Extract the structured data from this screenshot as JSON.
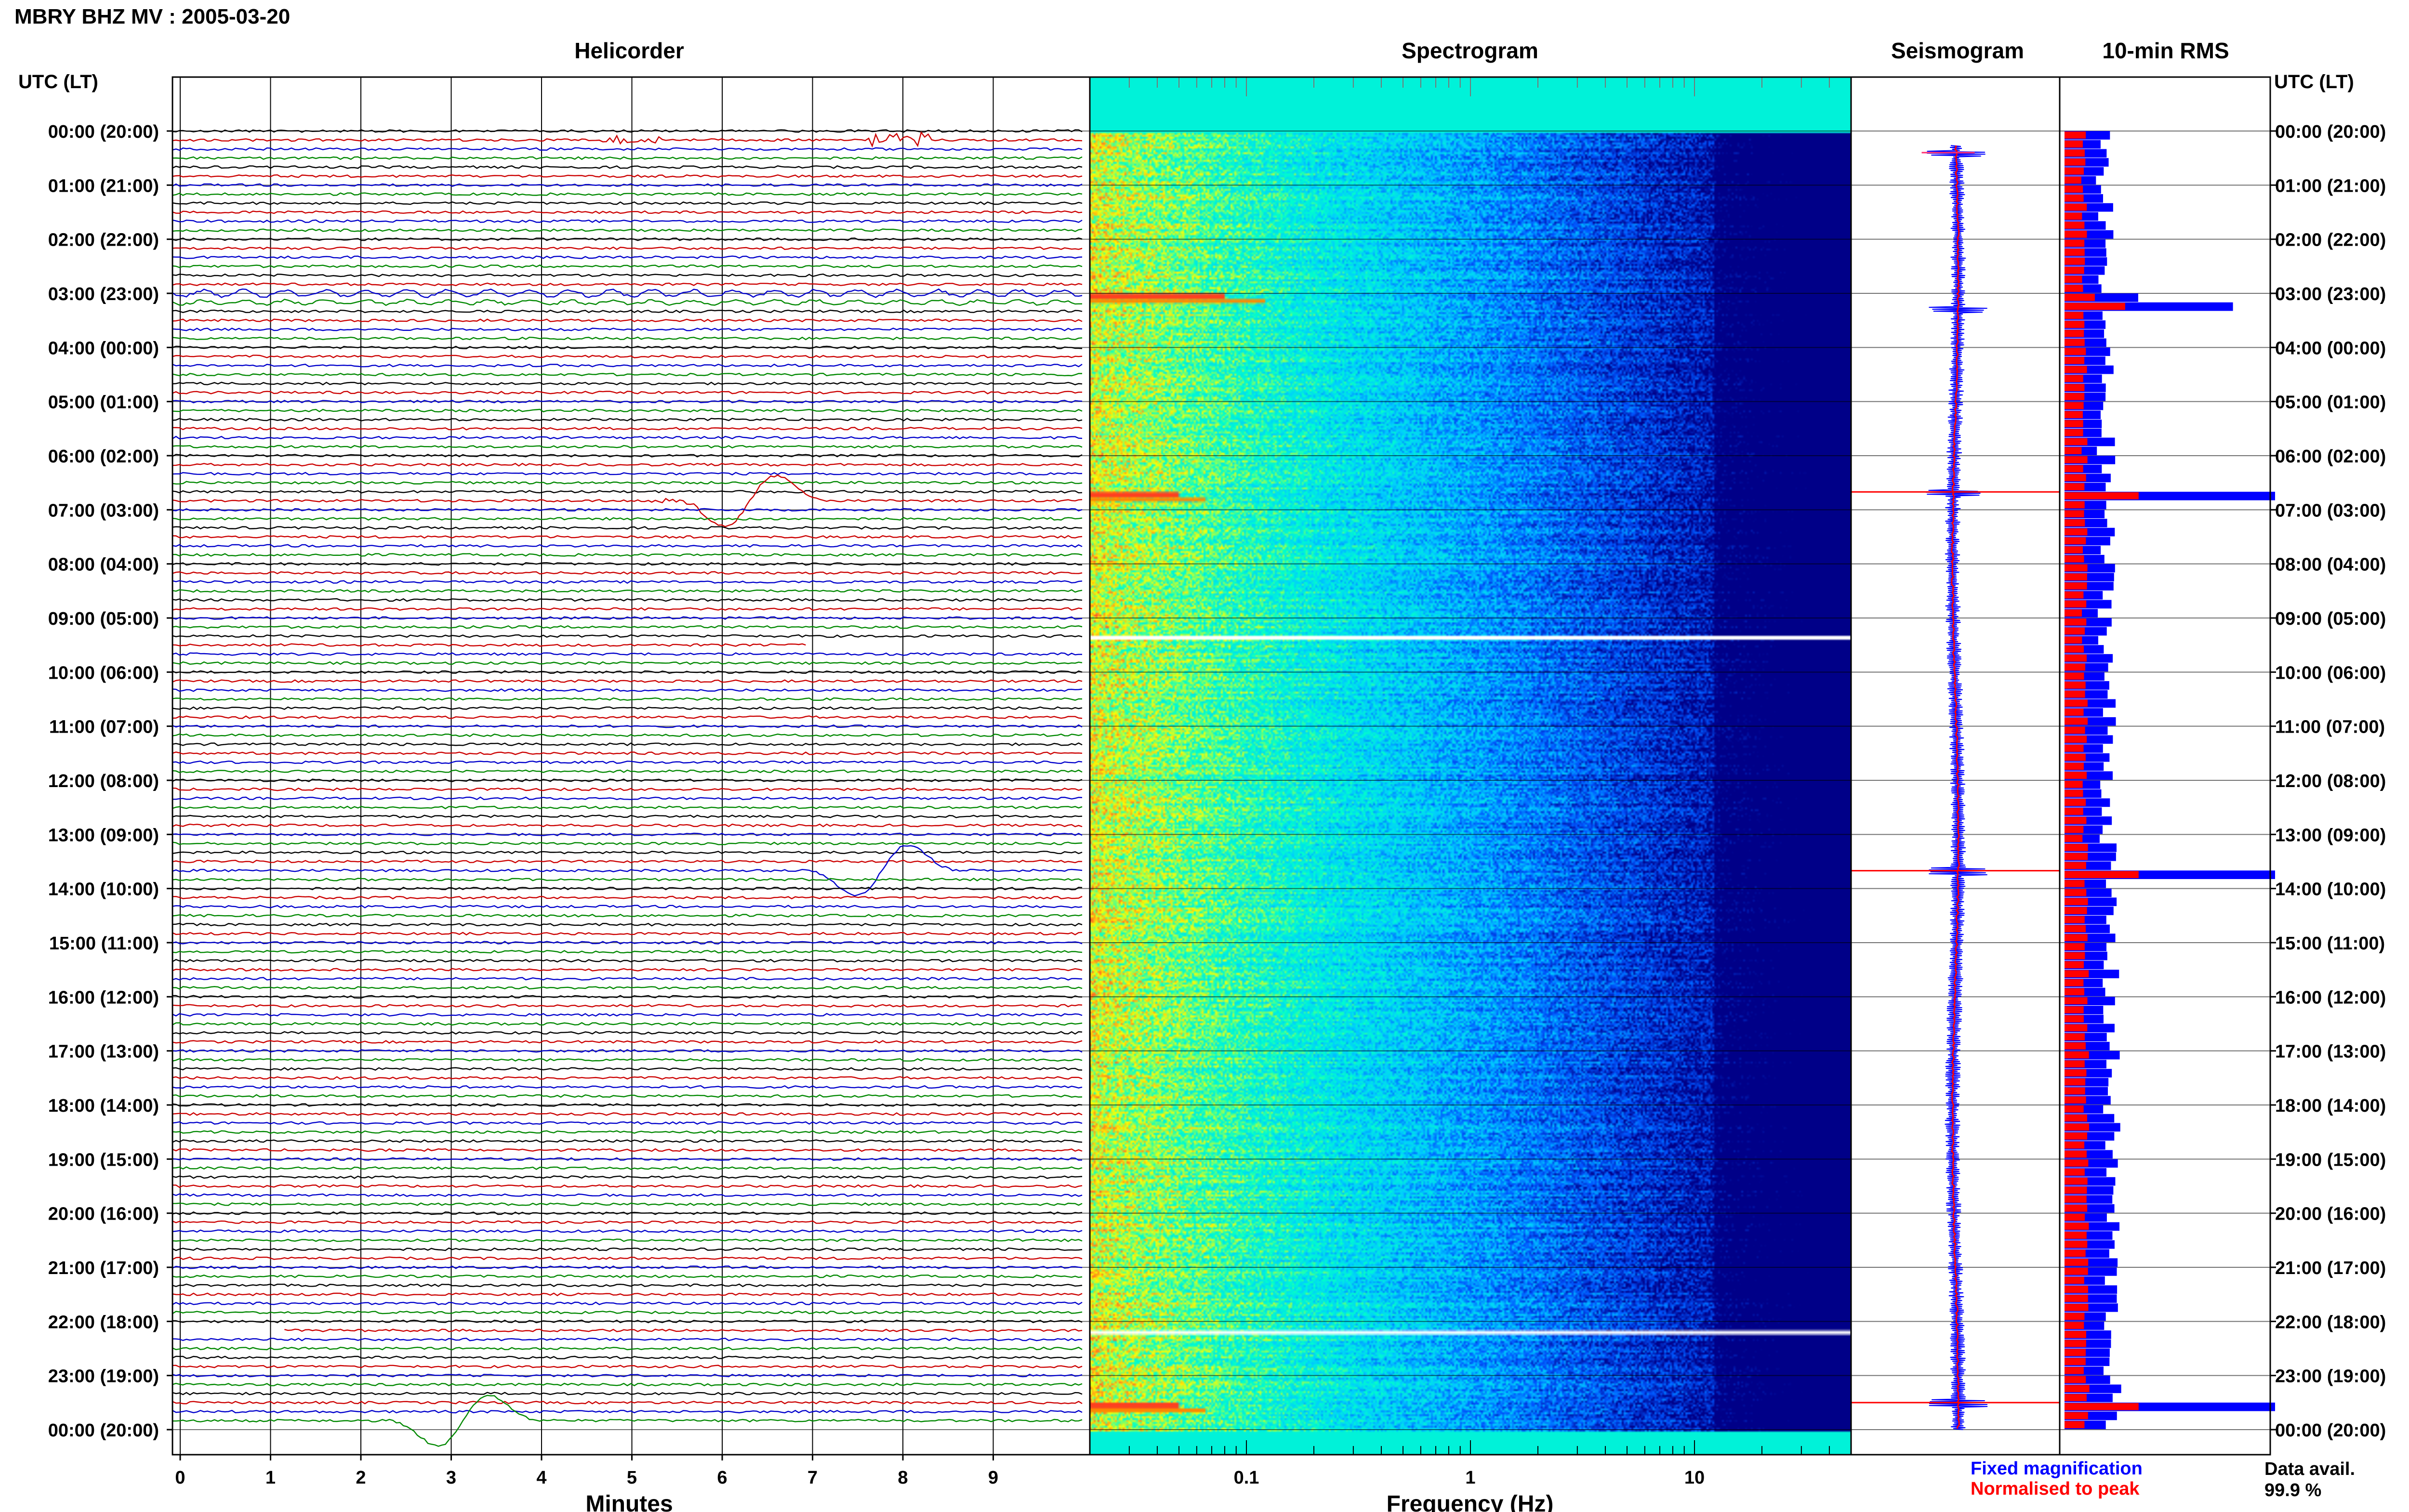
{
  "title": "MBRY BHZ MV : 2005-03-20",
  "panels": {
    "helicorder": "Helicorder",
    "spectrogram": "Spectrogram",
    "seismogram": "Seismogram",
    "rms": "10-min RMS"
  },
  "axis_header": "UTC (LT)",
  "legend": {
    "fixed": "Fixed magnification",
    "normalised": "Normalised to peak",
    "fixed_color": "#0000ff",
    "normalised_color": "#ff0000"
  },
  "availability": {
    "label": "Data avail.",
    "value": "99.9 %"
  },
  "chart_data": [
    {
      "type": "line",
      "title": "Helicorder",
      "xlabel": "Minutes",
      "x_ticks": [
        "0",
        "1",
        "2",
        "3",
        "4",
        "5",
        "6",
        "7",
        "8",
        "9"
      ],
      "xlim": [
        0,
        10
      ],
      "y_labels": [
        "00:00 (20:00)",
        "01:00 (21:00)",
        "02:00 (22:00)",
        "03:00 (23:00)",
        "04:00 (00:00)",
        "05:00 (01:00)",
        "06:00 (02:00)",
        "07:00 (03:00)",
        "08:00 (04:00)",
        "09:00 (05:00)",
        "10:00 (06:00)",
        "11:00 (07:00)",
        "12:00 (08:00)",
        "13:00 (09:00)",
        "14:00 (10:00)",
        "15:00 (11:00)",
        "16:00 (12:00)",
        "17:00 (13:00)",
        "18:00 (14:00)",
        "19:00 (15:00)",
        "20:00 (16:00)",
        "21:00 (17:00)",
        "22:00 (18:00)",
        "23:00 (19:00)",
        "00:00 (20:00)"
      ],
      "line_colors": [
        "#000000",
        "#cc0000",
        "#0000cc",
        "#008800"
      ],
      "traces_per_hour": 6,
      "gaps": [
        {
          "hours_after_start": 9.5,
          "minutes": [
            7,
            10
          ]
        },
        {
          "hours_after_start": 22.1,
          "minutes": [
            0,
            1.2
          ]
        }
      ],
      "events": [
        {
          "hour": 0.1,
          "minute": 5.0,
          "kind": "burst",
          "color": "#000088",
          "amp": 0.3
        },
        {
          "hour": 0.1,
          "minute": 8.0,
          "kind": "burst",
          "color": "#000088",
          "amp": 0.5
        },
        {
          "hour": 3.0,
          "minute": 0,
          "kind": "longperiod",
          "color": "#008800",
          "amp": 0.25
        },
        {
          "hour": 3.17,
          "minute": 0,
          "kind": "longperiod",
          "color": "#0000cc",
          "amp": 0.15
        },
        {
          "hour": 6.83,
          "minute": 6.35,
          "kind": "pulse",
          "color": "#008800",
          "amp": 1.9
        },
        {
          "hour": 6.83,
          "minute": 5.6,
          "kind": "burst",
          "color": "#660000",
          "amp": 0.2
        },
        {
          "hour": 13.67,
          "minute": 7.8,
          "kind": "pulse",
          "color": "#aa0000",
          "amp": 1.9
        },
        {
          "hour": 23.83,
          "minute": 3.2,
          "kind": "pulse",
          "color": "#aa0000",
          "amp": 1.9
        }
      ]
    },
    {
      "type": "heatmap",
      "title": "Spectrogram",
      "xlabel": "Frequency (Hz)",
      "x_scale": "log",
      "xlim": [
        0.02,
        50
      ],
      "x_ticks": [
        "0.1",
        "1",
        "10"
      ],
      "x_tick_values": [
        0.1,
        1,
        10
      ],
      "colormap": [
        "#ff3030",
        "#ffff00",
        "#00ffcc",
        "#00ccff",
        "#0055ff",
        "#000088"
      ],
      "white_lines_hours": [
        9.33,
        22.17
      ],
      "highlight_rows": [
        {
          "hour": 3.0,
          "fmax": 0.08
        },
        {
          "hour": 6.67,
          "fmax": 0.05
        },
        {
          "hour": 23.5,
          "fmax": 0.05
        }
      ]
    },
    {
      "type": "line",
      "title": "Seismogram",
      "series": [
        {
          "name": "Fixed magnification",
          "color": "#0000ff"
        },
        {
          "name": "Normalised to peak",
          "color": "#ff0000"
        }
      ],
      "spikes_hours": [
        0.4,
        3.3,
        6.67,
        13.67,
        23.5
      ]
    },
    {
      "type": "bar",
      "title": "10-min RMS",
      "orientation": "horizontal",
      "series": [
        {
          "name": "Fixed magnification",
          "color": "#0000ff"
        },
        {
          "name": "Normalised to peak",
          "color": "#ff0000"
        }
      ],
      "interval_minutes": 10,
      "spikes": [
        {
          "hour": 0.33,
          "value": 0.2
        },
        {
          "hour": 3.0,
          "value": 0.35
        },
        {
          "hour": 3.17,
          "value": 0.8
        },
        {
          "hour": 6.67,
          "value": 1.0
        },
        {
          "hour": 13.67,
          "value": 1.0
        },
        {
          "hour": 23.5,
          "value": 1.0
        }
      ]
    }
  ]
}
